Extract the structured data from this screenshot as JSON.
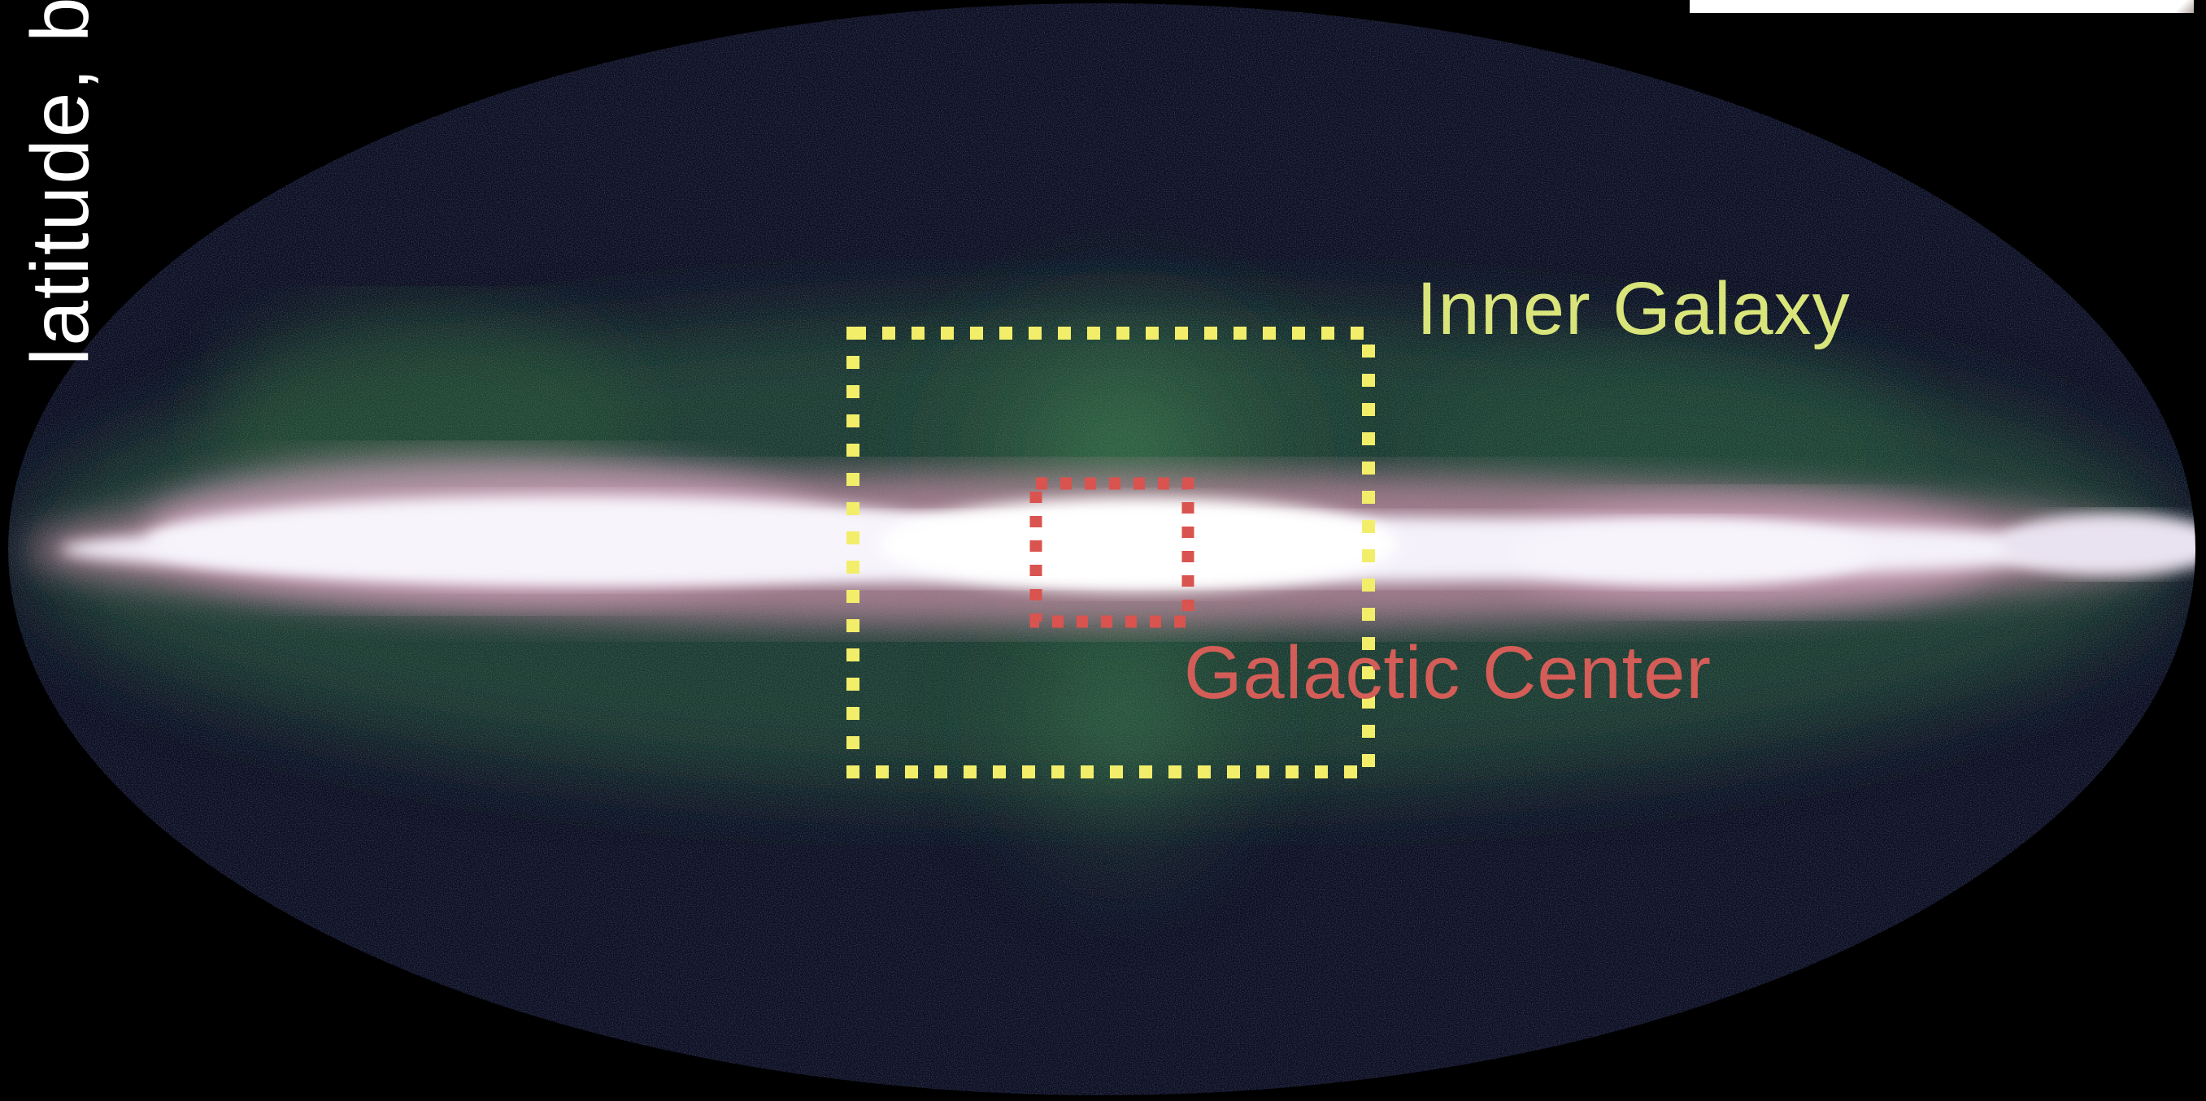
{
  "axis": {
    "y_label": "latitude, b"
  },
  "regions": {
    "inner_galaxy": {
      "label": "Inner Galaxy",
      "color": "#d9e57a",
      "box_color": "#f3ee6a"
    },
    "galactic_center": {
      "label": "Galactic Center",
      "color": "#d45d57",
      "box_color": "#d9534f"
    }
  },
  "map": {
    "projection": "mollweide-ellipse",
    "background": "#000000",
    "sky_base_color": "#0b0a22"
  }
}
